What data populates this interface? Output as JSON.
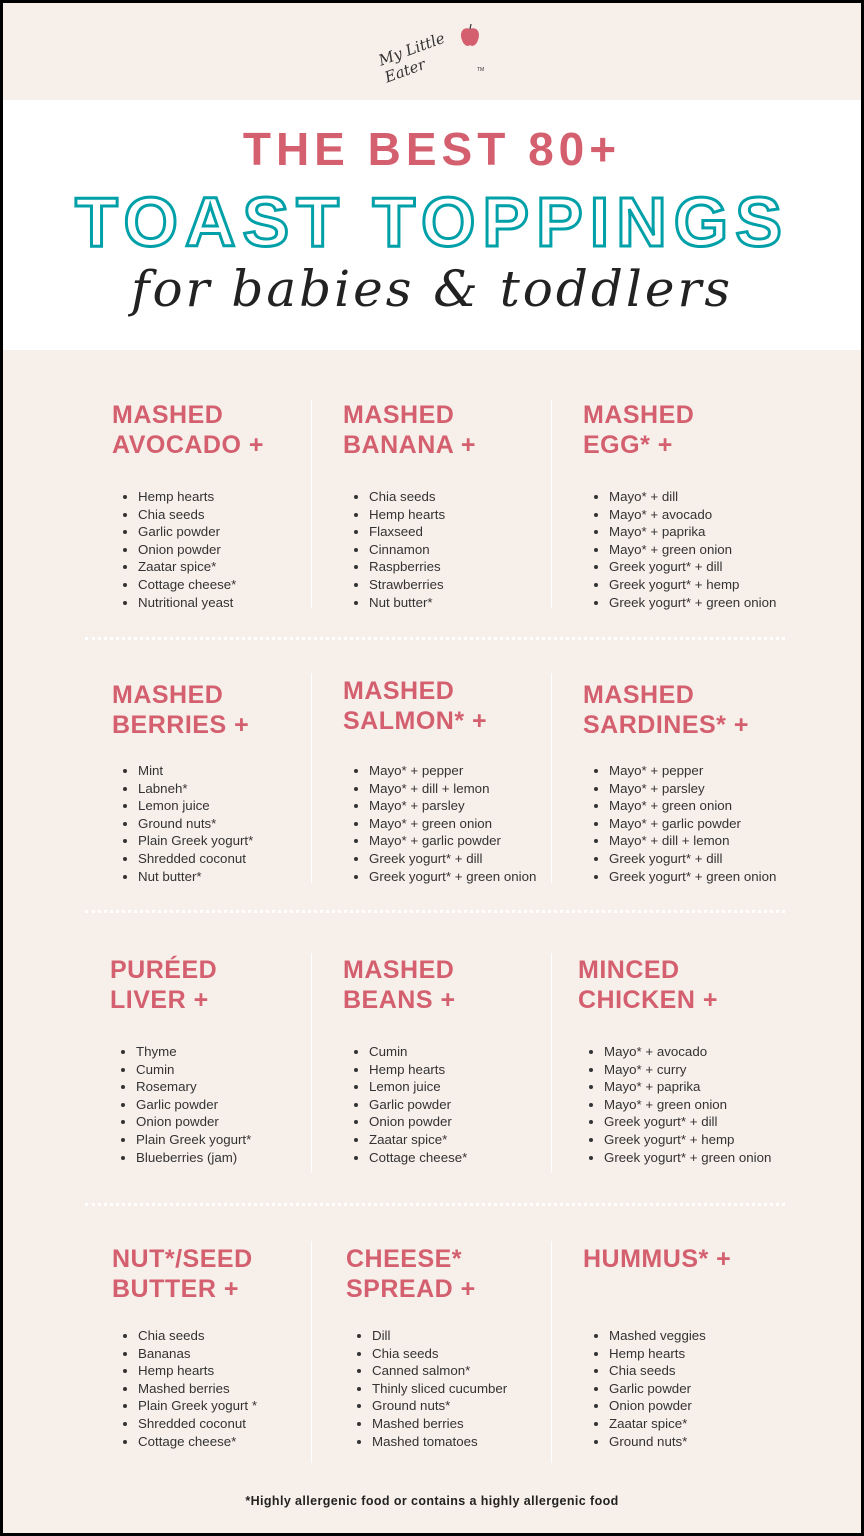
{
  "brand": {
    "logo_text": "My Little Eater",
    "trademark": "TM"
  },
  "header": {
    "line1": "THE BEST 80+",
    "line2": "TOAST TOPPINGS",
    "line3": "for babies & toddlers"
  },
  "colors": {
    "accent_pink": "#d4606f",
    "accent_teal": "#00a0a8",
    "background": "#f7efea"
  },
  "sections": [
    {
      "title": [
        "MASHED",
        "AVOCADO +"
      ],
      "items": [
        "Hemp hearts",
        "Chia seeds",
        "Garlic powder",
        "Onion powder",
        "Zaatar spice*",
        "Cottage cheese*",
        "Nutritional yeast"
      ]
    },
    {
      "title": [
        "MASHED",
        "BANANA +"
      ],
      "items": [
        "Chia seeds",
        "Hemp hearts",
        "Flaxseed",
        "Cinnamon",
        "Raspberries",
        "Strawberries",
        "Nut butter*"
      ]
    },
    {
      "title": [
        "MASHED",
        "EGG* +"
      ],
      "items": [
        "Mayo* + dill",
        "Mayo* + avocado",
        "Mayo* + paprika",
        "Mayo* + green onion",
        "Greek yogurt* + dill",
        "Greek yogurt* + hemp",
        "Greek yogurt* + green onion"
      ]
    },
    {
      "title": [
        "MASHED",
        "BERRIES +"
      ],
      "items": [
        "Mint",
        "Labneh*",
        "Lemon juice",
        "Ground nuts*",
        "Plain Greek yogurt*",
        "Shredded coconut",
        "Nut butter*"
      ]
    },
    {
      "title": [
        "MASHED",
        "SALMON* +"
      ],
      "items": [
        "Mayo* + pepper",
        "Mayo* + dill + lemon",
        "Mayo* + parsley",
        "Mayo* + green onion",
        "Mayo* + garlic powder",
        "Greek yogurt* + dill",
        "Greek yogurt* + green onion"
      ]
    },
    {
      "title": [
        "MASHED",
        "SARDINES* +"
      ],
      "items": [
        "Mayo* + pepper",
        "Mayo* + parsley",
        "Mayo* + green onion",
        "Mayo* + garlic powder",
        "Mayo* + dill + lemon",
        "Greek yogurt* + dill",
        "Greek yogurt* + green onion"
      ]
    },
    {
      "title": [
        "PURÉED",
        "LIVER +"
      ],
      "items": [
        "Thyme",
        "Cumin",
        "Rosemary",
        "Garlic powder",
        "Onion powder",
        "Plain Greek yogurt*",
        "Blueberries (jam)"
      ]
    },
    {
      "title": [
        "MASHED",
        "BEANS +"
      ],
      "items": [
        "Cumin",
        "Hemp hearts",
        "Lemon juice",
        "Garlic powder",
        "Onion powder",
        "Zaatar spice*",
        "Cottage cheese*"
      ]
    },
    {
      "title": [
        "MINCED",
        "CHICKEN +"
      ],
      "items": [
        "Mayo* + avocado",
        "Mayo* + curry",
        "Mayo* + paprika",
        "Mayo* + green onion",
        "Greek yogurt* + dill",
        "Greek yogurt* + hemp",
        "Greek yogurt* + green onion"
      ]
    },
    {
      "title": [
        "NUT*/SEED",
        "BUTTER +"
      ],
      "items": [
        "Chia seeds",
        "Bananas",
        "Hemp hearts",
        "Mashed berries",
        "Plain Greek yogurt *",
        "Shredded coconut",
        "Cottage cheese*"
      ]
    },
    {
      "title": [
        "CHEESE*",
        "SPREAD +"
      ],
      "items": [
        "Dill",
        "Chia seeds",
        "Canned salmon*",
        "Thinly sliced cucumber",
        "Ground nuts*",
        "Mashed berries",
        "Mashed tomatoes"
      ]
    },
    {
      "title": [
        "HUMMUS* +"
      ],
      "items": [
        "Mashed veggies",
        "Hemp hearts",
        "Chia seeds",
        "Garlic powder",
        "Onion powder",
        "Zaatar spice*",
        "Ground nuts*"
      ]
    }
  ],
  "footnote": "*Highly allergenic food or contains a highly allergenic food"
}
